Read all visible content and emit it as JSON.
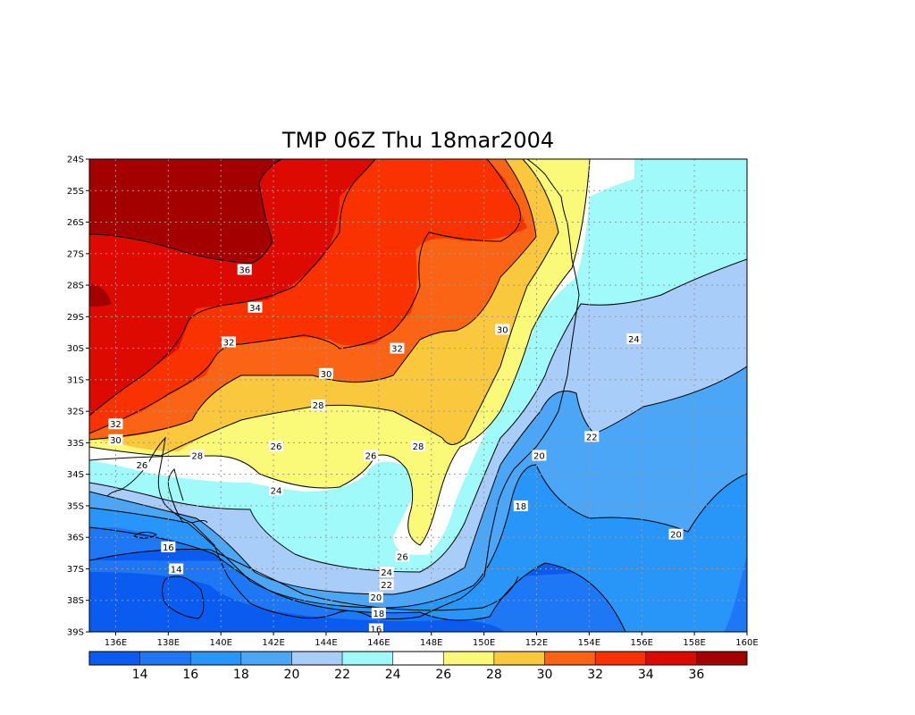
{
  "title": "TMP 06Z Thu 18mar2004",
  "colors": {
    "bins": [
      "#0a5cf0",
      "#1e78f5",
      "#2896f8",
      "#4ba6f8",
      "#a8cdf8",
      "#a0fafa",
      "#ffffff",
      "#fafa78",
      "#fac83c",
      "#fa6414",
      "#fa3200",
      "#dc0a00",
      "#a50000"
    ]
  },
  "chart_data": {
    "type": "heatmap",
    "title": "TMP 06Z Thu 18mar2004",
    "variable": "TMP",
    "time": "06Z Thu 18mar2004",
    "lon_range": [
      135,
      160
    ],
    "lat_range": [
      -39,
      -24
    ],
    "lon_ticks": [
      "136E",
      "138E",
      "140E",
      "142E",
      "144E",
      "146E",
      "148E",
      "150E",
      "152E",
      "154E",
      "156E",
      "158E",
      "160E"
    ],
    "lat_ticks": [
      "24S",
      "25S",
      "26S",
      "27S",
      "28S",
      "29S",
      "30S",
      "31S",
      "32S",
      "33S",
      "34S",
      "35S",
      "36S",
      "37S",
      "38S",
      "39S"
    ],
    "grid": true,
    "colorbar": {
      "placement": "bottom",
      "labels": [
        "14",
        "16",
        "18",
        "20",
        "22",
        "24",
        "26",
        "28",
        "30",
        "32",
        "34",
        "36"
      ]
    },
    "contour_labels": [
      {
        "text": "36",
        "lon": 140.9,
        "lat": -27.5
      },
      {
        "text": "34",
        "lon": 141.3,
        "lat": -28.7
      },
      {
        "text": "32",
        "lon": 140.3,
        "lat": -29.8
      },
      {
        "text": "32",
        "lon": 146.7,
        "lat": -30.0
      },
      {
        "text": "32",
        "lon": 136.0,
        "lat": -32.4
      },
      {
        "text": "30",
        "lon": 144.0,
        "lat": -30.8
      },
      {
        "text": "30",
        "lon": 150.7,
        "lat": -29.4
      },
      {
        "text": "30",
        "lon": 136.0,
        "lat": -32.9
      },
      {
        "text": "28",
        "lon": 143.7,
        "lat": -31.8
      },
      {
        "text": "28",
        "lon": 147.5,
        "lat": -33.1
      },
      {
        "text": "28",
        "lon": 139.1,
        "lat": -33.4
      },
      {
        "text": "26",
        "lon": 137.0,
        "lat": -33.7
      },
      {
        "text": "26",
        "lon": 142.1,
        "lat": -33.1
      },
      {
        "text": "26",
        "lon": 145.7,
        "lat": -33.4
      },
      {
        "text": "26",
        "lon": 146.9,
        "lat": -36.6
      },
      {
        "text": "24",
        "lon": 142.1,
        "lat": -34.5
      },
      {
        "text": "24",
        "lon": 146.3,
        "lat": -37.1
      },
      {
        "text": "24",
        "lon": 155.7,
        "lat": -29.7
      },
      {
        "text": "22",
        "lon": 146.3,
        "lat": -37.5
      },
      {
        "text": "22",
        "lon": 154.1,
        "lat": -32.8
      },
      {
        "text": "20",
        "lon": 145.9,
        "lat": -37.9
      },
      {
        "text": "20",
        "lon": 152.1,
        "lat": -33.4
      },
      {
        "text": "20",
        "lon": 157.3,
        "lat": -35.9
      },
      {
        "text": "18",
        "lon": 146.0,
        "lat": -38.4
      },
      {
        "text": "18",
        "lon": 151.4,
        "lat": -35.0
      },
      {
        "text": "16",
        "lon": 138.0,
        "lat": -36.3
      },
      {
        "text": "16",
        "lon": 145.9,
        "lat": -38.9
      },
      {
        "text": "14",
        "lon": 138.3,
        "lat": -37.0
      }
    ]
  }
}
